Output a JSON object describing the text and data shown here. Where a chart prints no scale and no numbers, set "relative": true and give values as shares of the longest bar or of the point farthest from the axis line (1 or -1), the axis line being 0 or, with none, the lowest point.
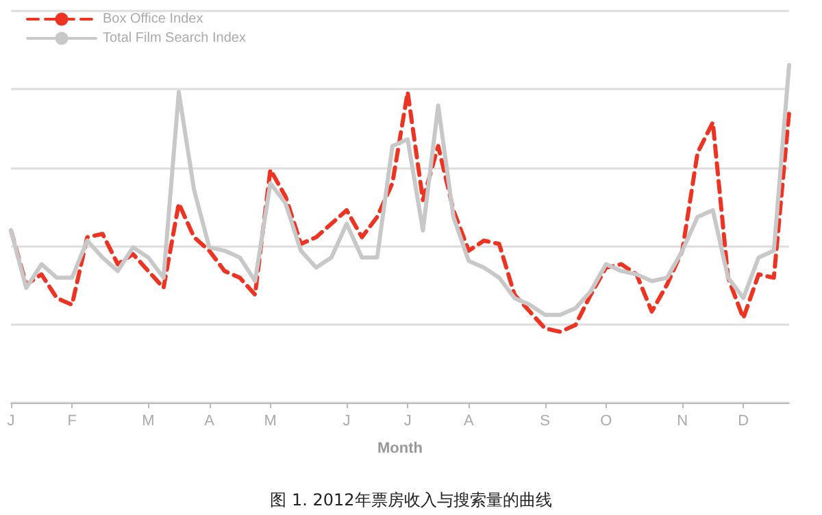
{
  "chart_data": {
    "type": "line",
    "relative": true,
    "title": "图 1. 2012年票房收入与搜索量的曲线",
    "xlabel": "Month",
    "categories": [
      "J",
      null,
      null,
      null,
      "F",
      null,
      null,
      null,
      null,
      "M",
      null,
      null,
      null,
      "A",
      null,
      null,
      null,
      "M",
      null,
      null,
      null,
      null,
      "J",
      null,
      null,
      null,
      "J",
      null,
      null,
      null,
      "A",
      null,
      null,
      null,
      null,
      "S",
      null,
      null,
      null,
      "O",
      null,
      null,
      null,
      null,
      "N",
      null,
      null,
      null,
      "D",
      null,
      null,
      null
    ],
    "series": [
      {
        "name": "Box Office Index",
        "color": "#ee3322",
        "line_style": "dashed",
        "values": [
          0.51,
          0.35,
          0.38,
          0.31,
          0.29,
          0.49,
          0.5,
          0.41,
          0.44,
          0.39,
          0.34,
          0.59,
          0.49,
          0.45,
          0.39,
          0.37,
          0.32,
          0.69,
          0.61,
          0.47,
          0.49,
          0.53,
          0.57,
          0.49,
          0.55,
          0.65,
          0.92,
          0.6,
          0.76,
          0.57,
          0.45,
          0.48,
          0.47,
          0.32,
          0.27,
          0.22,
          0.21,
          0.23,
          0.32,
          0.4,
          0.41,
          0.38,
          0.27,
          0.35,
          0.45,
          0.74,
          0.83,
          0.37,
          0.25,
          0.38,
          0.37,
          0.86
        ]
      },
      {
        "name": "Total Film Search Index",
        "color": "#c8c8c8",
        "line_style": "solid",
        "values": [
          0.51,
          0.34,
          0.41,
          0.37,
          0.37,
          0.48,
          0.43,
          0.39,
          0.46,
          0.43,
          0.37,
          0.92,
          0.63,
          0.46,
          0.45,
          0.43,
          0.36,
          0.65,
          0.59,
          0.45,
          0.4,
          0.43,
          0.53,
          0.43,
          0.43,
          0.76,
          0.78,
          0.51,
          0.88,
          0.55,
          0.42,
          0.4,
          0.37,
          0.31,
          0.29,
          0.26,
          0.26,
          0.28,
          0.33,
          0.41,
          0.39,
          0.38,
          0.36,
          0.37,
          0.45,
          0.55,
          0.57,
          0.37,
          0.31,
          0.43,
          0.45,
          1
        ]
      }
    ],
    "grid": "y",
    "legend": "top left",
    "marker": "none"
  }
}
